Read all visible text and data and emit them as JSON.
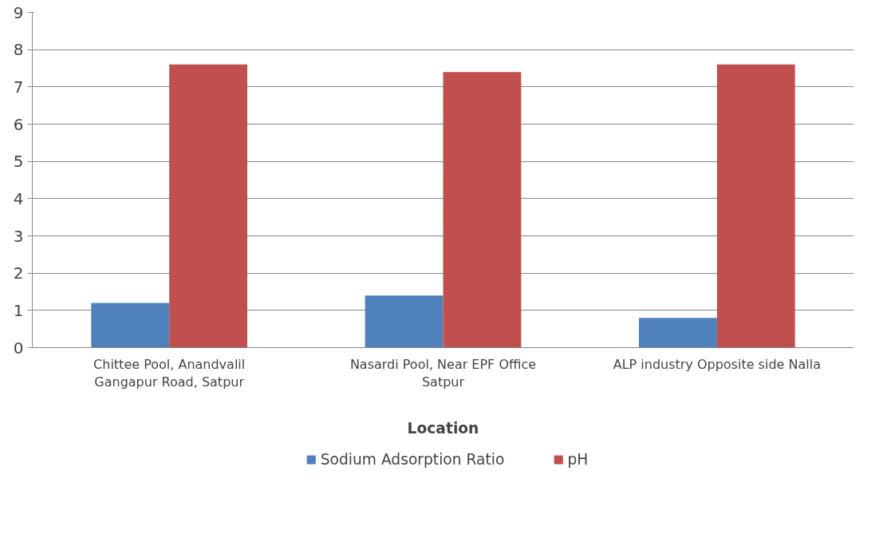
{
  "chart_data": {
    "type": "bar",
    "xlabel": "Location",
    "categories": [
      "Chittee Pool, Anandvalil\nGangapur Road, Satpur",
      "Nasardi Pool, Near EPF Office\nSatpur",
      "ALP industry Opposite side Nalla"
    ],
    "series": [
      {
        "name": "Sodium Adsorption Ratio",
        "color": "#4f81bd",
        "values": [
          1.2,
          1.4,
          0.8
        ]
      },
      {
        "name": "pH",
        "color": "#c0504d",
        "values": [
          7.6,
          7.4,
          7.6
        ]
      }
    ],
    "ylim": [
      0,
      9
    ],
    "yticks": [
      0,
      1,
      2,
      3,
      4,
      5,
      6,
      7,
      8,
      9
    ],
    "grid": "y",
    "legend": "bottom"
  }
}
